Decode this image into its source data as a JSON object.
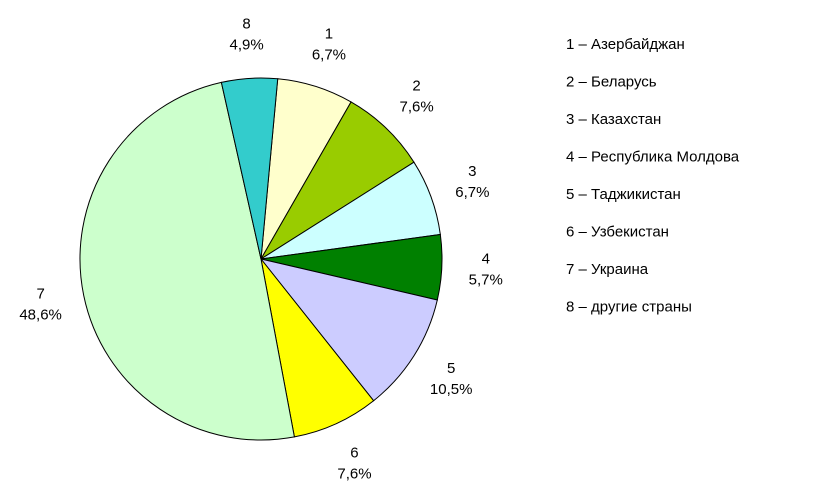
{
  "chart_data": {
    "type": "pie",
    "categories": [
      "1",
      "2",
      "3",
      "4",
      "5",
      "6",
      "7",
      "8"
    ],
    "values": [
      6.7,
      7.6,
      6.7,
      5.7,
      10.5,
      7.6,
      48.6,
      4.9
    ],
    "value_labels": [
      "6,7%",
      "7,6%",
      "6,7%",
      "5,7%",
      "10,5%",
      "7,6%",
      "48,6%",
      "4,9%"
    ],
    "colors": [
      "#ffffcc",
      "#99cc00",
      "#ccffff",
      "#008000",
      "#ccccff",
      "#ffff00",
      "#ccffcc",
      "#33cccc"
    ],
    "legend": [
      "1 – Азербайджан",
      "2 – Беларусь",
      "3 – Казахстан",
      "4 – Республика Молдова",
      "5 – Таджикистан",
      "6 – Узбекистан",
      "7 – Украина",
      "8 – другие страны"
    ],
    "legend_position": "right"
  }
}
